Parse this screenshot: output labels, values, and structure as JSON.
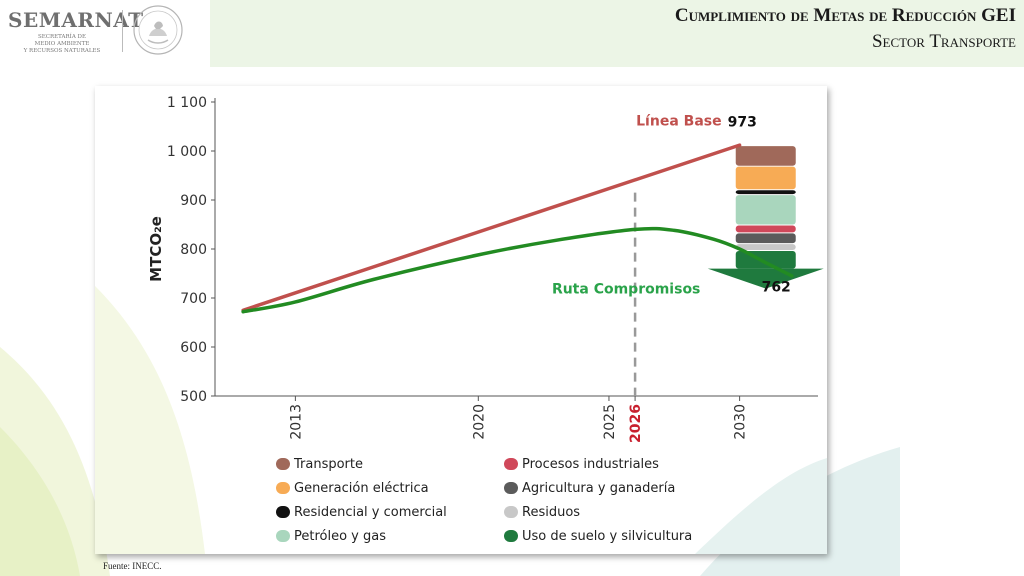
{
  "header": {
    "logo": "SEMARNAT",
    "logo_sub_1": "SECRETARÍA DE",
    "logo_sub_2": "MEDIO AMBIENTE",
    "logo_sub_3": "Y RECURSOS NATURALES",
    "title": "Cumplimiento de Metas de Reducción GEI",
    "subtitle": "Sector Transporte"
  },
  "footer": {
    "source": "Fuente: INECC."
  },
  "chart_data": {
    "type": "line",
    "ylabel": "MTCO₂e",
    "ylim": [
      500,
      1100
    ],
    "yticks": [
      500,
      600,
      700,
      800,
      900,
      1000,
      1100
    ],
    "ytick_labels": [
      "500",
      "600",
      "700",
      "800",
      "900",
      "1 000",
      "1 100"
    ],
    "xlim": [
      2010,
      2033
    ],
    "xticks": [
      2013,
      2020,
      2025,
      2026,
      2030
    ],
    "xtick_labels": [
      "2013",
      "2020",
      "2025",
      "2026",
      "2030"
    ],
    "highlight_tick": "2026",
    "series": [
      {
        "name": "Línea Base",
        "color": "#c0504d",
        "x": [
          2011,
          2030
        ],
        "y": [
          675,
          1012
        ]
      },
      {
        "name": "Ruta Compromisos",
        "color": "#228b22",
        "x": [
          2011,
          2013,
          2016,
          2020,
          2023,
          2026,
          2027.5,
          2029,
          2030,
          2031,
          2032
        ],
        "y": [
          672,
          692,
          738,
          788,
          818,
          840,
          838,
          820,
          800,
          772,
          745
        ]
      }
    ],
    "annotations": [
      {
        "text": "973",
        "x": 2030,
        "y": 1050
      },
      {
        "text": "762",
        "x": 2031.3,
        "y": 715
      }
    ],
    "vline": {
      "x": 2026,
      "style": "dashed",
      "color": "#999999"
    },
    "stack": {
      "x": 2031,
      "segments": [
        {
          "name": "Transporte",
          "color": "#a0695a",
          "from": 1010,
          "to": 970
        },
        {
          "name": "Generación eléctrica",
          "color": "#f7ab55",
          "from": 968,
          "to": 922
        },
        {
          "name": "Residencial y comercial",
          "color": "#111111",
          "from": 920,
          "to": 912
        },
        {
          "name": "Petróleo y gas",
          "color": "#a9d6bd",
          "from": 910,
          "to": 850
        },
        {
          "name": "Procesos industriales",
          "color": "#d0485a",
          "from": 848,
          "to": 834
        },
        {
          "name": "Agricultura y ganadería",
          "color": "#5b5b5b",
          "from": 832,
          "to": 812
        },
        {
          "name": "Residuos",
          "color": "#c8c8c8",
          "from": 810,
          "to": 798
        },
        {
          "name": "Uso de suelo y silvicultura",
          "color": "#1f7a3e",
          "from": 796,
          "to": 760
        }
      ]
    },
    "legend": [
      {
        "label": "Transporte",
        "color": "#a0695a"
      },
      {
        "label": "Generación eléctrica",
        "color": "#f7ab55"
      },
      {
        "label": "Residencial y comercial",
        "color": "#111111"
      },
      {
        "label": "Petróleo y gas",
        "color": "#a9d6bd"
      },
      {
        "label": "Procesos industriales",
        "color": "#d0485a"
      },
      {
        "label": "Agricultura y ganadería",
        "color": "#5b5b5b"
      },
      {
        "label": "Residuos",
        "color": "#c8c8c8"
      },
      {
        "label": "Uso de suelo y silvicultura",
        "color": "#1f7a3e"
      }
    ]
  }
}
